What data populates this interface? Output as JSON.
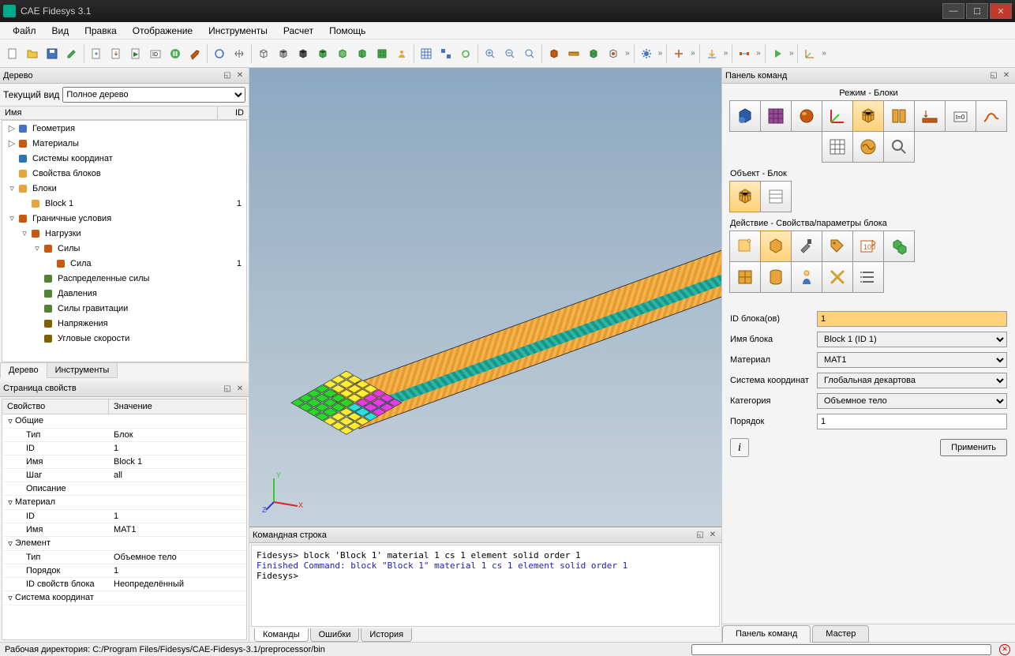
{
  "titlebar": {
    "title": "CAE Fidesys 3.1"
  },
  "menu": [
    "Файл",
    "Вид",
    "Правка",
    "Отображение",
    "Инструменты",
    "Расчет",
    "Помощь"
  ],
  "tree": {
    "title": "Дерево",
    "view_label": "Текущий вид",
    "view_value": "Полное дерево",
    "col_name": "Имя",
    "col_id": "ID",
    "items": [
      {
        "indent": 0,
        "tw": "▷",
        "icon": "#4472c4",
        "name": "Геометрия",
        "id": ""
      },
      {
        "indent": 0,
        "tw": "▷",
        "icon": "#c55a11",
        "name": "Материалы",
        "id": ""
      },
      {
        "indent": 0,
        "tw": "",
        "icon": "#2e75b6",
        "name": "Системы координат",
        "id": ""
      },
      {
        "indent": 0,
        "tw": "",
        "icon": "#e8a33d",
        "name": "Свойства блоков",
        "id": ""
      },
      {
        "indent": 0,
        "tw": "▿",
        "icon": "#e8a33d",
        "name": "Блоки",
        "id": ""
      },
      {
        "indent": 1,
        "tw": "",
        "icon": "#e8a33d",
        "name": "Block 1",
        "id": "1"
      },
      {
        "indent": 0,
        "tw": "▿",
        "icon": "#c55a11",
        "name": "Граничные условия",
        "id": ""
      },
      {
        "indent": 1,
        "tw": "▿",
        "icon": "#c55a11",
        "name": "Нагрузки",
        "id": ""
      },
      {
        "indent": 2,
        "tw": "▿",
        "icon": "#c55a11",
        "name": "Силы",
        "id": ""
      },
      {
        "indent": 3,
        "tw": "",
        "icon": "#c55a11",
        "name": "Сила",
        "id": "1"
      },
      {
        "indent": 2,
        "tw": "",
        "icon": "#548235",
        "name": "Распределенные силы",
        "id": ""
      },
      {
        "indent": 2,
        "tw": "",
        "icon": "#548235",
        "name": "Давления",
        "id": ""
      },
      {
        "indent": 2,
        "tw": "",
        "icon": "#548235",
        "name": "Силы гравитации",
        "id": ""
      },
      {
        "indent": 2,
        "tw": "",
        "icon": "#806000",
        "name": "Напряжения",
        "id": ""
      },
      {
        "indent": 2,
        "tw": "",
        "icon": "#806000",
        "name": "Угловые скорости",
        "id": ""
      }
    ],
    "tabs": [
      "Дерево",
      "Инструменты"
    ],
    "active_tab": 0
  },
  "props": {
    "title": "Страница свойств",
    "col1": "Свойство",
    "col2": "Значение",
    "groups": [
      {
        "name": "Общие",
        "rows": [
          [
            "Тип",
            "Блок"
          ],
          [
            "ID",
            "1"
          ],
          [
            "Имя",
            "Block 1"
          ],
          [
            "Шаг",
            "all"
          ],
          [
            "Описание",
            ""
          ]
        ]
      },
      {
        "name": "Материал",
        "rows": [
          [
            "ID",
            "1"
          ],
          [
            "Имя",
            "MAT1"
          ]
        ]
      },
      {
        "name": "Элемент",
        "rows": [
          [
            "Тип",
            "Объемное тело"
          ],
          [
            "Порядок",
            "1"
          ],
          [
            "ID свойств блока",
            "Неопределённый"
          ]
        ]
      },
      {
        "name": "Система координат",
        "rows": []
      }
    ]
  },
  "console": {
    "title": "Командная строка",
    "lines": [
      {
        "t": "Fidesys> block 'Block 1' material 1 cs 1 element solid order 1",
        "c": "#000"
      },
      {
        "t": "Finished Command: block \"Block 1\" material 1 cs 1 element solid order 1",
        "c": "#2020c0"
      },
      {
        "t": "",
        "c": "#000"
      },
      {
        "t": "Fidesys>",
        "c": "#000"
      }
    ],
    "tabs": [
      "Команды",
      "Ошибки",
      "История"
    ],
    "active_tab": 0
  },
  "right": {
    "title": "Панель команд",
    "mode_label": "Режим - Блоки",
    "object_label": "Объект - Блок",
    "action_label": "Действие - Свойства/параметры блока",
    "form": {
      "id_label": "ID блока(ов)",
      "id_value": "1",
      "name_label": "Имя блока",
      "name_value": "Block 1 (ID 1)",
      "mat_label": "Материал",
      "mat_value": "MAT1",
      "cs_label": "Система координат",
      "cs_value": "Глобальная декартова",
      "cat_label": "Категория",
      "cat_value": "Объемное тело",
      "order_label": "Порядок",
      "order_value": "1",
      "apply": "Применить"
    },
    "tabs": [
      "Панель команд",
      "Мастер"
    ],
    "active_tab": 0
  },
  "statusbar": {
    "text": "Рабочая директория: C:/Program Files/Fidesys/CAE-Fidesys-3.1/preprocessor/bin"
  },
  "colors": {
    "beam_orange": "#e89a2e",
    "beam_teal": "#1a9688",
    "end": [
      "#ffee33",
      "#ffee33",
      "#ffee33",
      "#ffee33",
      "#e83ae8",
      "#e83ae8",
      "#e83ae8",
      "#ffee33",
      "#ffee33",
      "#ffee33",
      "#ffee33",
      "#e83ae8",
      "#e83ae8",
      "#e83ae8",
      "#ffee33",
      "#ffee33",
      "#ffee33",
      "#ffee33",
      "#e83ae8",
      "#e83ae8",
      "#e83ae8",
      "#28d828",
      "#28d828",
      "#28d828",
      "#28d828",
      "#28e0e0",
      "#28e0e0",
      "#28e0e0",
      "#28d828",
      "#28d828",
      "#28d828",
      "#28d828",
      "#ffee33",
      "#ffee33",
      "#ffee33",
      "#28d828",
      "#28d828",
      "#28d828",
      "#28d828",
      "#ffee33",
      "#ffee33",
      "#ffee33",
      "#28d828",
      "#28d828",
      "#28d828",
      "#28d828",
      "#ffee33",
      "#ffee33",
      "#ffee33"
    ]
  }
}
